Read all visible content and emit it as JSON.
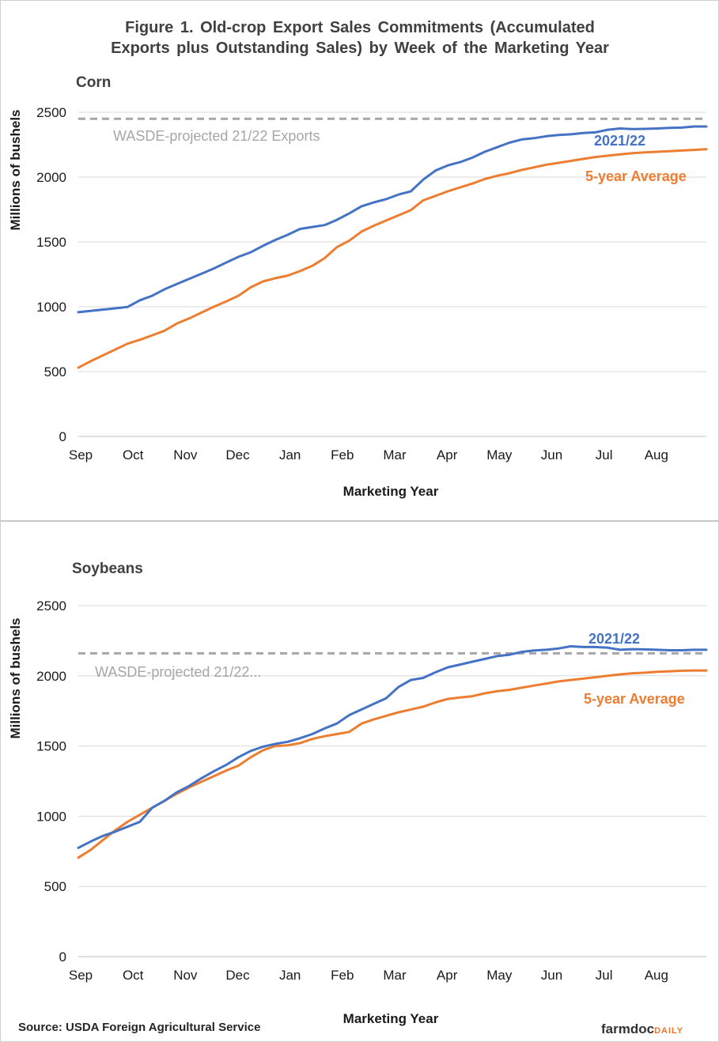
{
  "figure_title_line1": "Figure 1. Old-crop Export Sales Commitments (Accumulated",
  "figure_title_line2": "Exports plus Outstanding Sales) by Week of the Marketing Year",
  "source": "Source: USDA Foreign Agricultural Service",
  "brand": {
    "part1": "farmdoc",
    "part2": "DAILY"
  },
  "colors": {
    "series_2021": "#4472c4",
    "series_avg": "#ed7d31",
    "wasde": "#a6a6a6",
    "grid": "#d9d9d9"
  },
  "chart_data": [
    {
      "type": "line",
      "title": "Corn",
      "xlabel": "Marketing Year",
      "ylabel": "Millions of bushels",
      "ylim": [
        0,
        2500
      ],
      "yticks": [
        "0",
        "500",
        "1000",
        "1500",
        "2000",
        "2500"
      ],
      "month_labels": [
        "Sep",
        "Oct",
        "Nov",
        "Dec",
        "Jan",
        "Feb",
        "Mar",
        "Apr",
        "May",
        "Jun",
        "Jul",
        "Aug"
      ],
      "x_weeks": 52,
      "grid": "horizontal",
      "reference_line": {
        "value": 2450,
        "label": "WASDE-projected 21/22 Exports"
      },
      "series": [
        {
          "name": "2021/22",
          "values": [
            958,
            968,
            978,
            988,
            998,
            1050,
            1085,
            1135,
            1175,
            1215,
            1255,
            1295,
            1340,
            1385,
            1420,
            1470,
            1515,
            1555,
            1600,
            1615,
            1630,
            1670,
            1720,
            1775,
            1805,
            1830,
            1865,
            1890,
            1980,
            2050,
            2090,
            2115,
            2150,
            2195,
            2230,
            2265,
            2290,
            2300,
            2315,
            2325,
            2330,
            2340,
            2345,
            2365,
            2375,
            2370,
            2372,
            2375,
            2380,
            2382,
            2390,
            2390
          ]
        },
        {
          "name": "5-year Average",
          "values": [
            530,
            580,
            625,
            670,
            715,
            745,
            780,
            815,
            870,
            910,
            955,
            1000,
            1040,
            1085,
            1150,
            1195,
            1220,
            1240,
            1275,
            1315,
            1375,
            1460,
            1510,
            1580,
            1625,
            1665,
            1705,
            1745,
            1820,
            1855,
            1890,
            1920,
            1950,
            1985,
            2010,
            2030,
            2055,
            2075,
            2095,
            2110,
            2125,
            2140,
            2155,
            2165,
            2175,
            2185,
            2190,
            2195,
            2200,
            2205,
            2210,
            2215
          ]
        }
      ]
    },
    {
      "type": "line",
      "title": "Soybeans",
      "xlabel": "Marketing Year",
      "ylabel": "Millions of bushels",
      "ylim": [
        0,
        2500
      ],
      "yticks": [
        "0",
        "500",
        "1000",
        "1500",
        "2000",
        "2500"
      ],
      "month_labels": [
        "Sep",
        "Oct",
        "Nov",
        "Dec",
        "Jan",
        "Feb",
        "Mar",
        "Apr",
        "May",
        "Jun",
        "Jul",
        "Aug"
      ],
      "x_weeks": 52,
      "grid": "horizontal",
      "reference_line": {
        "value": 2160,
        "label": "WASDE-projected 21/22..."
      },
      "series": [
        {
          "name": "2021/22",
          "values": [
            775,
            820,
            860,
            890,
            925,
            960,
            1060,
            1110,
            1170,
            1215,
            1270,
            1320,
            1365,
            1420,
            1465,
            1495,
            1515,
            1530,
            1555,
            1585,
            1625,
            1660,
            1720,
            1760,
            1800,
            1840,
            1920,
            1970,
            1985,
            2025,
            2060,
            2080,
            2100,
            2120,
            2140,
            2150,
            2170,
            2180,
            2185,
            2195,
            2210,
            2205,
            2205,
            2200,
            2185,
            2190,
            2188,
            2185,
            2182,
            2182,
            2185,
            2185
          ]
        },
        {
          "name": "5-year Average",
          "values": [
            705,
            760,
            830,
            900,
            960,
            1010,
            1060,
            1110,
            1160,
            1205,
            1245,
            1285,
            1325,
            1360,
            1420,
            1470,
            1500,
            1505,
            1520,
            1550,
            1570,
            1585,
            1600,
            1660,
            1690,
            1715,
            1740,
            1760,
            1780,
            1810,
            1835,
            1845,
            1855,
            1875,
            1890,
            1900,
            1915,
            1930,
            1945,
            1960,
            1970,
            1980,
            1990,
            2000,
            2010,
            2018,
            2022,
            2028,
            2032,
            2036,
            2038,
            2038
          ]
        }
      ]
    }
  ]
}
